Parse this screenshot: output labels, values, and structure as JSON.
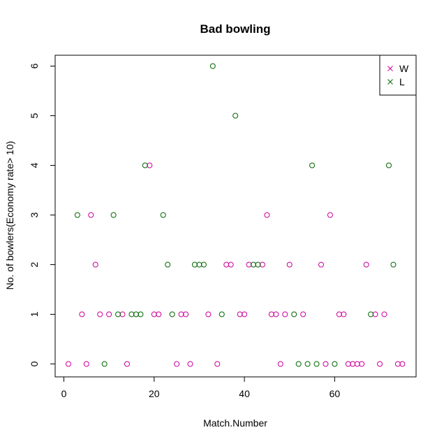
{
  "chart_data": {
    "type": "scatter",
    "title": "Bad bowling",
    "xlabel": "Match.Number",
    "ylabel": "No. of bowlers(Economy rate> 10)",
    "xlim": [
      0,
      76
    ],
    "ylim": [
      0,
      6
    ],
    "xticks": [
      0,
      20,
      40,
      60
    ],
    "yticks": [
      0,
      1,
      2,
      3,
      4,
      5,
      6
    ],
    "grid": false,
    "legend_position": "top-right",
    "marker": "open-circle",
    "series": [
      {
        "name": "W",
        "color": "#cc0099",
        "points": [
          {
            "x": 1,
            "y": 0
          },
          {
            "x": 4,
            "y": 1
          },
          {
            "x": 5,
            "y": 0
          },
          {
            "x": 6,
            "y": 3
          },
          {
            "x": 7,
            "y": 2
          },
          {
            "x": 8,
            "y": 1
          },
          {
            "x": 10,
            "y": 1
          },
          {
            "x": 13,
            "y": 1
          },
          {
            "x": 14,
            "y": 0
          },
          {
            "x": 19,
            "y": 4
          },
          {
            "x": 20,
            "y": 1
          },
          {
            "x": 21,
            "y": 1
          },
          {
            "x": 25,
            "y": 0
          },
          {
            "x": 26,
            "y": 1
          },
          {
            "x": 27,
            "y": 1
          },
          {
            "x": 28,
            "y": 0
          },
          {
            "x": 32,
            "y": 1
          },
          {
            "x": 34,
            "y": 0
          },
          {
            "x": 36,
            "y": 2
          },
          {
            "x": 37,
            "y": 2
          },
          {
            "x": 39,
            "y": 1
          },
          {
            "x": 40,
            "y": 1
          },
          {
            "x": 41,
            "y": 2
          },
          {
            "x": 44,
            "y": 2
          },
          {
            "x": 45,
            "y": 3
          },
          {
            "x": 46,
            "y": 1
          },
          {
            "x": 47,
            "y": 1
          },
          {
            "x": 48,
            "y": 0
          },
          {
            "x": 49,
            "y": 1
          },
          {
            "x": 50,
            "y": 2
          },
          {
            "x": 53,
            "y": 1
          },
          {
            "x": 57,
            "y": 2
          },
          {
            "x": 58,
            "y": 0
          },
          {
            "x": 59,
            "y": 3
          },
          {
            "x": 61,
            "y": 1
          },
          {
            "x": 62,
            "y": 1
          },
          {
            "x": 63,
            "y": 0
          },
          {
            "x": 64,
            "y": 0
          },
          {
            "x": 65,
            "y": 0
          },
          {
            "x": 66,
            "y": 0
          },
          {
            "x": 67,
            "y": 2
          },
          {
            "x": 69,
            "y": 1
          },
          {
            "x": 70,
            "y": 0
          },
          {
            "x": 71,
            "y": 1
          },
          {
            "x": 74,
            "y": 0
          },
          {
            "x": 75,
            "y": 0
          }
        ]
      },
      {
        "name": "L",
        "color": "#006600",
        "points": [
          {
            "x": 3,
            "y": 3
          },
          {
            "x": 9,
            "y": 0
          },
          {
            "x": 11,
            "y": 3
          },
          {
            "x": 12,
            "y": 1
          },
          {
            "x": 15,
            "y": 1
          },
          {
            "x": 16,
            "y": 1
          },
          {
            "x": 17,
            "y": 1
          },
          {
            "x": 18,
            "y": 4
          },
          {
            "x": 22,
            "y": 3
          },
          {
            "x": 23,
            "y": 2
          },
          {
            "x": 24,
            "y": 1
          },
          {
            "x": 29,
            "y": 2
          },
          {
            "x": 30,
            "y": 2
          },
          {
            "x": 31,
            "y": 2
          },
          {
            "x": 33,
            "y": 6
          },
          {
            "x": 35,
            "y": 1
          },
          {
            "x": 38,
            "y": 5
          },
          {
            "x": 42,
            "y": 2
          },
          {
            "x": 43,
            "y": 2
          },
          {
            "x": 51,
            "y": 1
          },
          {
            "x": 52,
            "y": 0
          },
          {
            "x": 54,
            "y": 0
          },
          {
            "x": 55,
            "y": 4
          },
          {
            "x": 56,
            "y": 0
          },
          {
            "x": 60,
            "y": 0
          },
          {
            "x": 68,
            "y": 1
          },
          {
            "x": 72,
            "y": 4
          },
          {
            "x": 73,
            "y": 2
          }
        ]
      }
    ]
  }
}
